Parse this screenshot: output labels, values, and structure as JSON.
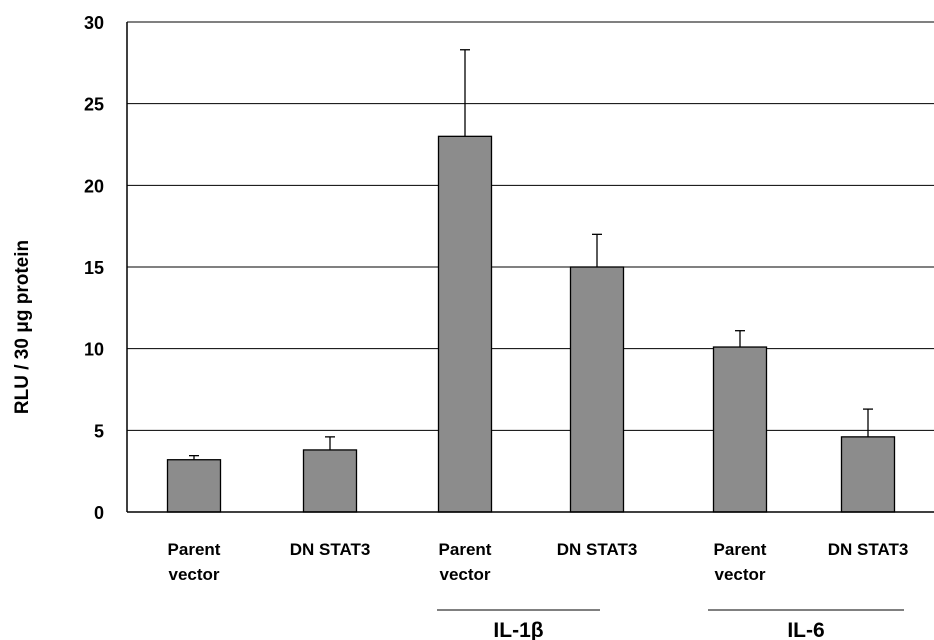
{
  "chart_data": {
    "type": "bar",
    "categories": [
      {
        "line1": "Parent",
        "line2": "vector"
      },
      {
        "line1": "DN STAT3",
        "line2": ""
      },
      {
        "line1": "Parent",
        "line2": "vector"
      },
      {
        "line1": "DN STAT3",
        "line2": ""
      },
      {
        "line1": "Parent",
        "line2": "vector"
      },
      {
        "line1": "DN STAT3",
        "line2": ""
      }
    ],
    "values": [
      3.2,
      3.8,
      23.0,
      15.0,
      10.1,
      4.6
    ],
    "errors": [
      0.25,
      0.8,
      5.3,
      2.0,
      1.0,
      1.7
    ],
    "groups": [
      {
        "label": "IL-1β",
        "category_indices": [
          2,
          3
        ]
      },
      {
        "label": "IL-6",
        "category_indices": [
          4,
          5
        ]
      }
    ],
    "ylabel": "RLU / 30 μg protein",
    "ylim": [
      0,
      30
    ],
    "yticks": [
      0,
      5,
      10,
      15,
      20,
      25,
      30
    ],
    "grid": true,
    "bar_color": "#8c8c8c"
  }
}
